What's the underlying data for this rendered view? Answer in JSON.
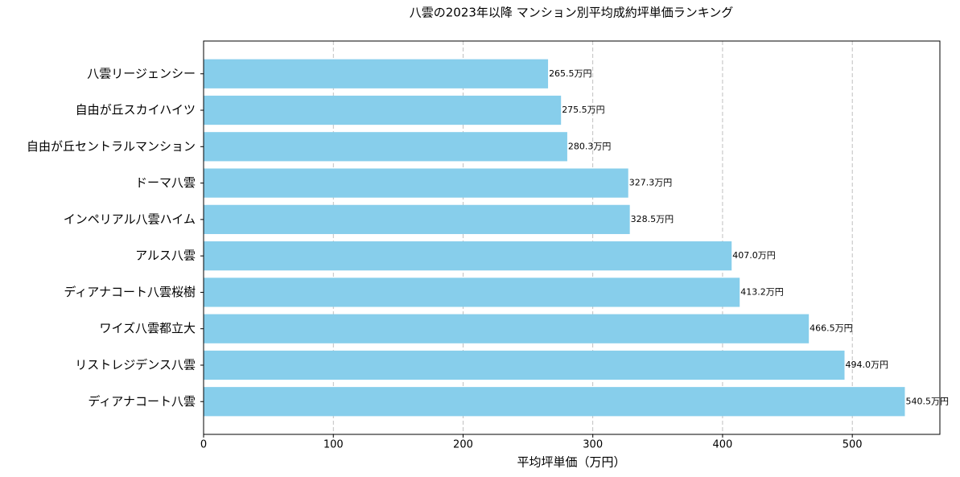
{
  "chart_data": {
    "type": "barh",
    "title": "八雲の2023年以降 マンション別平均成約坪単価ランキング",
    "x_label": "平均坪単価（万円）",
    "categories": [
      "八雲リージェンシー",
      "自由が丘スカイハイツ",
      "自由が丘セントラルマンション",
      "ドーマ八雲",
      "インペリアル八雲ハイム",
      "アルス八雲",
      "ディアナコート八雲桜樹",
      "ワイズ八雲都立大",
      "リストレジデンス八雲",
      "ディアナコート八雲"
    ],
    "values": [
      265.5,
      275.5,
      280.3,
      327.3,
      328.5,
      407.0,
      413.2,
      466.5,
      494.0,
      540.5
    ],
    "value_labels": [
      "265.5万円",
      "275.5万円",
      "280.3万円",
      "327.3万円",
      "328.5万円",
      "407.0万円",
      "413.2万円",
      "466.5万円",
      "494.0万円",
      "540.5万円"
    ],
    "color": "#87ceeb",
    "xlim": [
      0,
      567.5
    ],
    "xticks": [
      0,
      100,
      200,
      300,
      400,
      500
    ],
    "grid": true
  }
}
